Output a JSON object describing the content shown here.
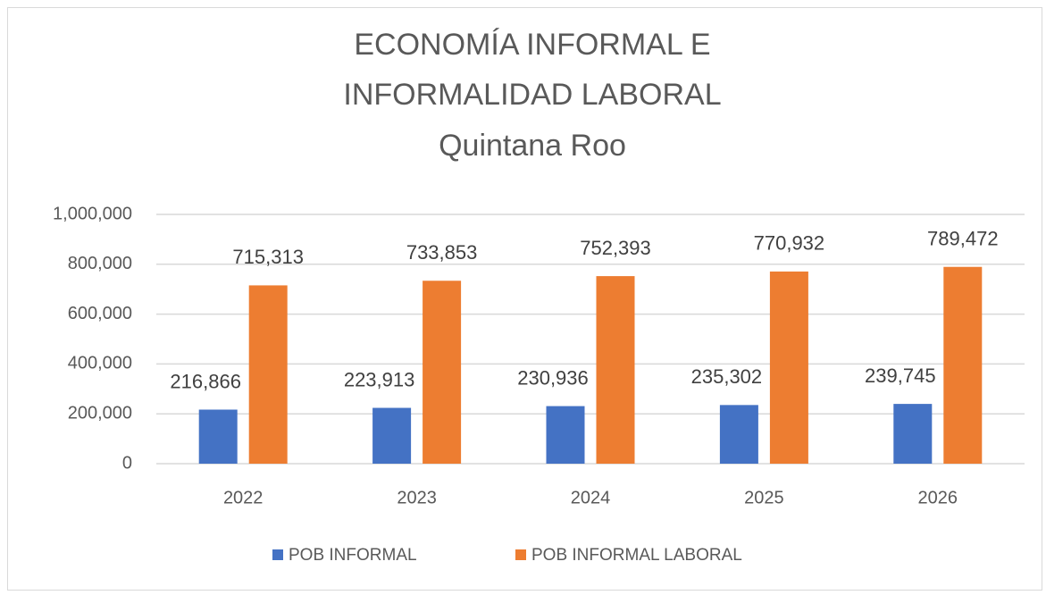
{
  "chart_data": {
    "type": "bar",
    "title": [
      "ECONOMÍA INFORMAL E",
      "INFORMALIDAD LABORAL"
    ],
    "subtitle": "Quintana Roo",
    "categories": [
      "2022",
      "2023",
      "2024",
      "2025",
      "2026"
    ],
    "series": [
      {
        "name": "POB INFORMAL",
        "color": "#4472c4",
        "values": [
          216866,
          223913,
          230936,
          235302,
          239745
        ],
        "value_labels": [
          "216,866",
          "223,913",
          "230,936",
          "235,302",
          "239,745"
        ]
      },
      {
        "name": "POB INFORMAL LABORAL",
        "color": "#ed7d31",
        "values": [
          715313,
          733853,
          752393,
          770932,
          789472
        ],
        "value_labels": [
          "715,313",
          "733,853",
          "752,393",
          "770,932",
          "789,472"
        ]
      }
    ],
    "ylim": [
      0,
      1000000
    ],
    "yticks": [
      0,
      {
        "value": 200000,
        "label": "200,000"
      },
      {
        "value": 400000,
        "label": "400,000"
      },
      {
        "value": 600000,
        "label": "600,000"
      },
      {
        "value": 800000,
        "label": "800,000"
      },
      {
        "value": 1000000,
        "label": "1,000,000"
      }
    ],
    "grid": true,
    "legend": "bottom"
  }
}
